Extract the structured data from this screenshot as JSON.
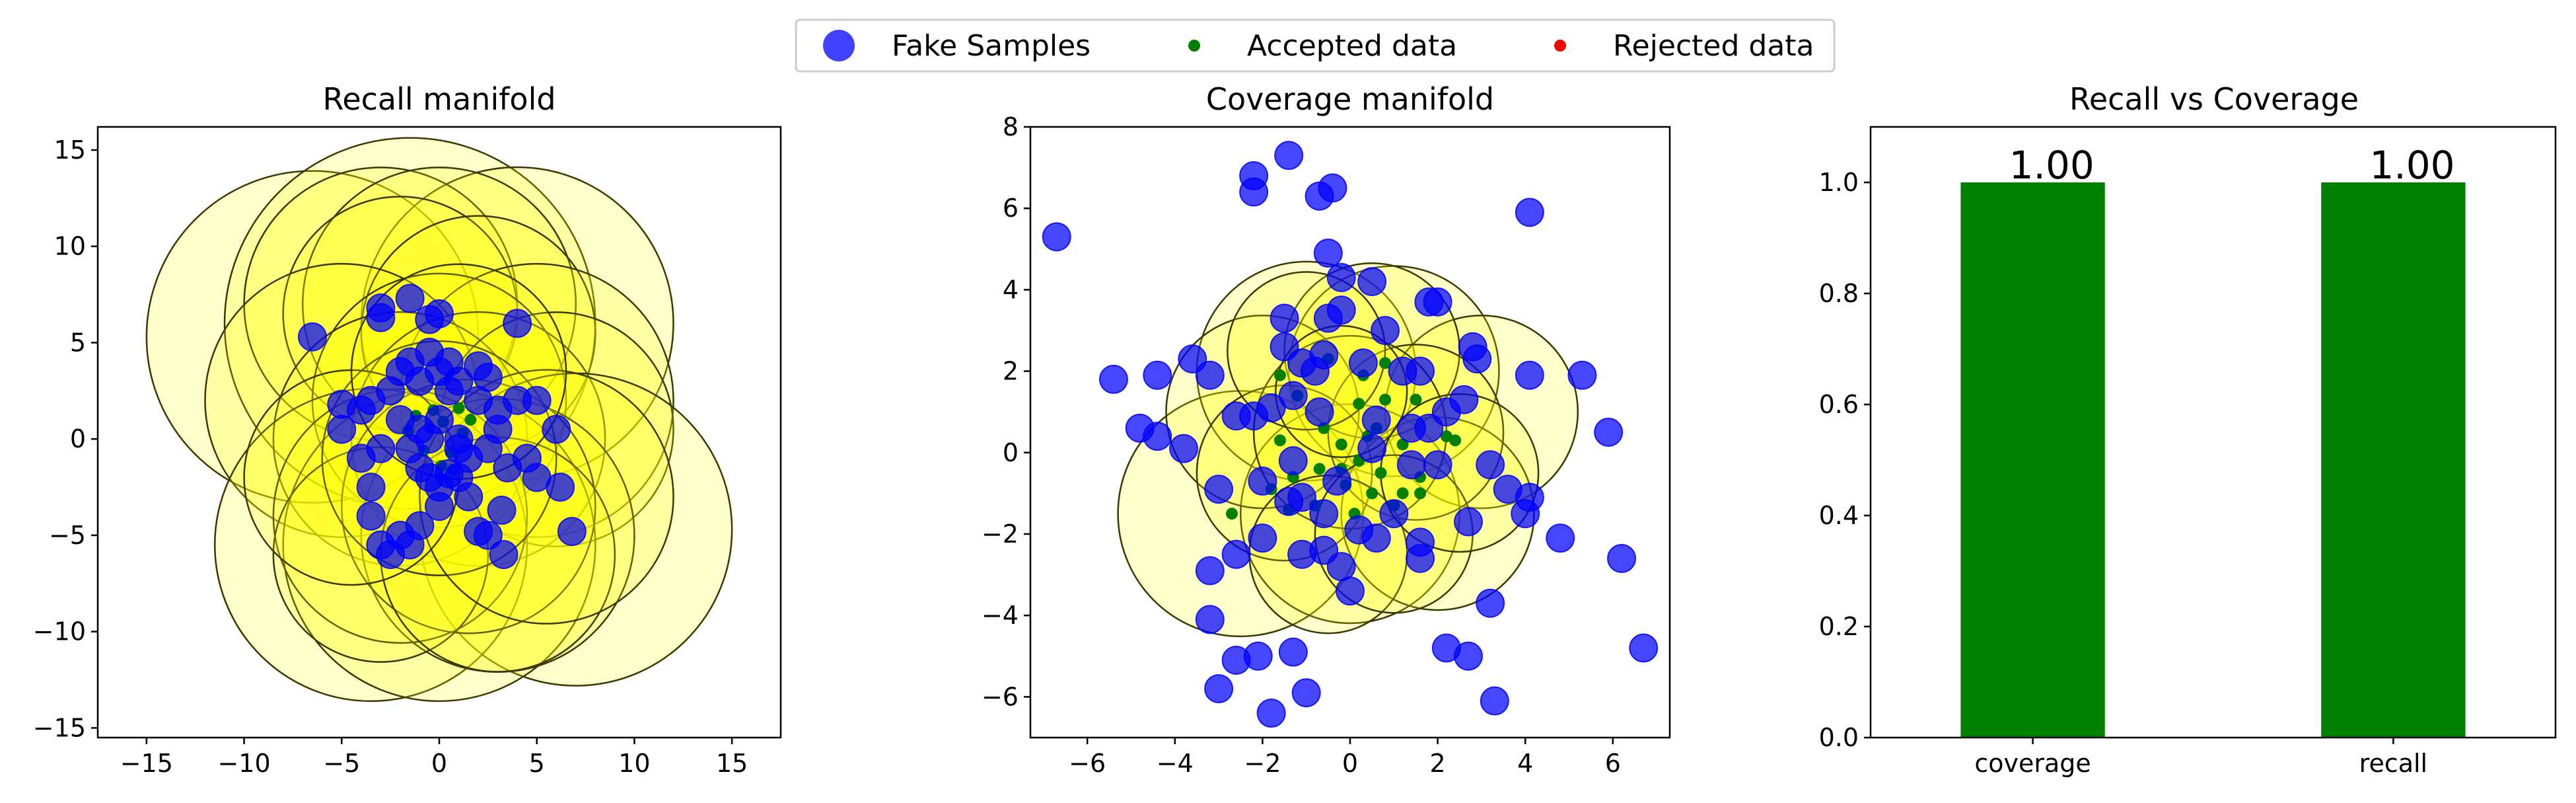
{
  "legend": {
    "items": [
      {
        "label": "Fake Samples",
        "color": "#0000ff",
        "marker": "large-circle"
      },
      {
        "label": "Accepted data",
        "color": "#008000",
        "marker": "small-dot"
      },
      {
        "label": "Rejected data",
        "color": "#ff0000",
        "marker": "small-dot"
      }
    ]
  },
  "colors": {
    "fake": "#0000ff",
    "accepted": "#008000",
    "rejected": "#ff0000",
    "manifold_fill": "#ffff00",
    "manifold_edge": "#3a3a00",
    "bar": "#008000"
  },
  "chart_data": [
    {
      "type": "scatter",
      "title": "Recall manifold",
      "xlim": [
        -17.5,
        17.5
      ],
      "ylim": [
        -15.5,
        16.2
      ],
      "xticks": [
        -15,
        -10,
        -5,
        0,
        5,
        10,
        15
      ],
      "yticks": [
        -15,
        -10,
        -5,
        0,
        5,
        10,
        15
      ],
      "circles": [
        {
          "x": -6.5,
          "y": 5.3,
          "r": 8.5
        },
        {
          "x": -1.5,
          "y": 6.0,
          "r": 9.5
        },
        {
          "x": 4.0,
          "y": 6.0,
          "r": 8.0
        },
        {
          "x": -3.0,
          "y": 7.0,
          "r": 7.0
        },
        {
          "x": 0.0,
          "y": 7.0,
          "r": 7.0
        },
        {
          "x": -2.0,
          "y": 6.5,
          "r": 6.0
        },
        {
          "x": 2.0,
          "y": 5.5,
          "r": 6.0
        },
        {
          "x": 5.0,
          "y": 2.0,
          "r": 7.0
        },
        {
          "x": -5.0,
          "y": 2.0,
          "r": 7.0
        },
        {
          "x": 0.0,
          "y": 2.0,
          "r": 6.5
        },
        {
          "x": -2.0,
          "y": 0.0,
          "r": 6.5
        },
        {
          "x": 2.0,
          "y": 0.0,
          "r": 6.5
        },
        {
          "x": 6.0,
          "y": 0.5,
          "r": 6.0
        },
        {
          "x": 7.0,
          "y": -4.7,
          "r": 8.0
        },
        {
          "x": -3.5,
          "y": -5.5,
          "r": 8.0
        },
        {
          "x": 0.0,
          "y": -5.5,
          "r": 8.0
        },
        {
          "x": 3.0,
          "y": -5.0,
          "r": 7.0
        },
        {
          "x": -2.0,
          "y": -4.0,
          "r": 6.5
        },
        {
          "x": 1.5,
          "y": -3.5,
          "r": 6.5
        },
        {
          "x": -3.0,
          "y": -6.0,
          "r": 5.5
        },
        {
          "x": 3.0,
          "y": -6.0,
          "r": 6.0
        },
        {
          "x": 0.0,
          "y": -1.0,
          "r": 6.0
        },
        {
          "x": 5.5,
          "y": -3.0,
          "r": 6.5
        },
        {
          "x": -4.5,
          "y": -2.0,
          "r": 5.5
        },
        {
          "x": 1.0,
          "y": 3.5,
          "r": 5.5
        }
      ],
      "fake": [
        [
          -6.5,
          5.3
        ],
        [
          -3,
          6.8
        ],
        [
          -3,
          6.3
        ],
        [
          -1.5,
          7.3
        ],
        [
          0,
          6.5
        ],
        [
          -0.5,
          6.2
        ],
        [
          4,
          6
        ],
        [
          -5,
          1.8
        ],
        [
          -4,
          1.5
        ],
        [
          -3.5,
          2
        ],
        [
          -5,
          0.5
        ],
        [
          -2.5,
          2.5
        ],
        [
          -2,
          3.5
        ],
        [
          -1.5,
          4
        ],
        [
          -1,
          3
        ],
        [
          -0.5,
          4.5
        ],
        [
          0,
          3.5
        ],
        [
          0.5,
          2.5
        ],
        [
          0.5,
          4
        ],
        [
          1,
          3
        ],
        [
          2,
          3.8
        ],
        [
          2.5,
          3.2
        ],
        [
          2,
          2
        ],
        [
          3,
          1.5
        ],
        [
          4,
          2
        ],
        [
          5,
          2
        ],
        [
          6,
          0.5
        ],
        [
          -2,
          1
        ],
        [
          -1,
          0.5
        ],
        [
          0,
          1
        ],
        [
          1,
          0
        ],
        [
          1.5,
          -1
        ],
        [
          2.5,
          -0.5
        ],
        [
          3,
          0.5
        ],
        [
          3.5,
          -1.5
        ],
        [
          4.5,
          -1
        ],
        [
          5,
          -2
        ],
        [
          6.2,
          -2.5
        ],
        [
          6.8,
          -4.8
        ],
        [
          -3,
          -0.5
        ],
        [
          -4,
          -1
        ],
        [
          -3.5,
          -2.5
        ],
        [
          -3.5,
          -4
        ],
        [
          -3,
          -5.5
        ],
        [
          -2,
          -5
        ],
        [
          -1.5,
          -5.5
        ],
        [
          -2.5,
          -6
        ],
        [
          -1,
          -4.5
        ],
        [
          0,
          -3.5
        ],
        [
          0,
          -2.5
        ],
        [
          1,
          -2
        ],
        [
          1.5,
          -3
        ],
        [
          2,
          -4.8
        ],
        [
          2.5,
          -5
        ],
        [
          3.2,
          -3.7
        ],
        [
          3.3,
          -6
        ],
        [
          -1,
          -1.5
        ],
        [
          -0.5,
          -2
        ],
        [
          0.5,
          -1.8
        ],
        [
          1,
          -0.5
        ],
        [
          -1.5,
          -0.5
        ],
        [
          -0.5,
          0
        ]
      ],
      "accepted": [
        [
          -0.5,
          0.6
        ],
        [
          0.2,
          0.9
        ],
        [
          1.2,
          0.3
        ],
        [
          -0.8,
          -0.6
        ],
        [
          0.6,
          -0.7
        ],
        [
          1.6,
          1.0
        ],
        [
          -1.6,
          0.4
        ],
        [
          0.1,
          -1.4
        ],
        [
          1.0,
          1.6
        ],
        [
          -0.3,
          1.5
        ],
        [
          0.7,
          -1.6
        ],
        [
          -1.2,
          1.2
        ]
      ],
      "rejected": []
    },
    {
      "type": "scatter",
      "title": "Coverage manifold",
      "xlim": [
        -7.3,
        7.3
      ],
      "ylim": [
        -7.0,
        8.0
      ],
      "xticks": [
        -6,
        -4,
        -2,
        0,
        2,
        4,
        6
      ],
      "yticks": [
        -6,
        -4,
        -2,
        0,
        2,
        4,
        6,
        8
      ],
      "circles": [
        {
          "x": -2.5,
          "y": -1.5,
          "r": 2.8
        },
        {
          "x": -1.0,
          "y": 2.0,
          "r": 2.5
        },
        {
          "x": 1.0,
          "y": 2.0,
          "r": 2.4
        },
        {
          "x": 3.0,
          "y": 1.0,
          "r": 2.2
        },
        {
          "x": 0.0,
          "y": -1.5,
          "r": 2.5
        },
        {
          "x": 2.0,
          "y": -1.5,
          "r": 2.2
        },
        {
          "x": -2.0,
          "y": 1.0,
          "r": 2.2
        },
        {
          "x": 0.5,
          "y": 2.5,
          "r": 2.0
        },
        {
          "x": -1.5,
          "y": -0.5,
          "r": 2.0
        },
        {
          "x": 1.5,
          "y": 0.5,
          "r": 2.0
        },
        {
          "x": 0.0,
          "y": 0.5,
          "r": 2.2
        },
        {
          "x": -0.5,
          "y": -2.5,
          "r": 1.8
        },
        {
          "x": 1.0,
          "y": -2.0,
          "r": 1.8
        },
        {
          "x": -1.0,
          "y": 2.5,
          "r": 1.8
        },
        {
          "x": 2.5,
          "y": -0.5,
          "r": 1.8
        },
        {
          "x": -0.2,
          "y": 1.5,
          "r": 1.5
        }
      ],
      "fake": [
        [
          -6.7,
          5.3
        ],
        [
          -1.4,
          7.3
        ],
        [
          -2.2,
          6.8
        ],
        [
          -2.2,
          6.4
        ],
        [
          -0.7,
          6.3
        ],
        [
          -0.4,
          6.5
        ],
        [
          4.1,
          5.9
        ],
        [
          -0.5,
          4.9
        ],
        [
          -0.2,
          4.3
        ],
        [
          0.5,
          4.2
        ],
        [
          -1.5,
          3.3
        ],
        [
          -0.5,
          3.3
        ],
        [
          -0.2,
          3.5
        ],
        [
          0.8,
          3.0
        ],
        [
          1.8,
          3.7
        ],
        [
          2.0,
          3.7
        ],
        [
          2.8,
          2.6
        ],
        [
          2.9,
          2.3
        ],
        [
          5.3,
          1.9
        ],
        [
          4.1,
          1.9
        ],
        [
          -5.4,
          1.8
        ],
        [
          -4.4,
          1.9
        ],
        [
          -3.6,
          2.3
        ],
        [
          -3.2,
          1.9
        ],
        [
          -2.6,
          0.9
        ],
        [
          -2.2,
          0.9
        ],
        [
          -1.8,
          1.1
        ],
        [
          -1.5,
          2.6
        ],
        [
          -1.1,
          2.2
        ],
        [
          -0.8,
          2.0
        ],
        [
          -0.6,
          2.4
        ],
        [
          0.3,
          2.2
        ],
        [
          1.2,
          2.0
        ],
        [
          1.6,
          2.0
        ],
        [
          2.2,
          1.0
        ],
        [
          2.6,
          1.3
        ],
        [
          1.8,
          0.6
        ],
        [
          1.4,
          0.6
        ],
        [
          0.6,
          0.8
        ],
        [
          -0.7,
          1.0
        ],
        [
          -1.3,
          1.4
        ],
        [
          -4.8,
          0.6
        ],
        [
          -4.4,
          0.4
        ],
        [
          -3.8,
          0.1
        ],
        [
          -3.0,
          -0.9
        ],
        [
          -2.0,
          -0.7
        ],
        [
          -1.3,
          -0.2
        ],
        [
          -1.1,
          -1.1
        ],
        [
          -0.3,
          -0.7
        ],
        [
          0.5,
          0.1
        ],
        [
          1.4,
          -0.3
        ],
        [
          2.0,
          -0.3
        ],
        [
          3.2,
          -0.3
        ],
        [
          3.6,
          -0.9
        ],
        [
          4.1,
          -1.1
        ],
        [
          4.0,
          -1.5
        ],
        [
          5.9,
          0.5
        ],
        [
          -1.4,
          -1.2
        ],
        [
          -0.6,
          -1.5
        ],
        [
          0.2,
          -1.9
        ],
        [
          1.0,
          -1.5
        ],
        [
          1.6,
          -2.2
        ],
        [
          2.7,
          -1.7
        ],
        [
          4.8,
          -2.1
        ],
        [
          6.2,
          -2.6
        ],
        [
          -3.2,
          -2.9
        ],
        [
          -2.6,
          -2.5
        ],
        [
          -2.0,
          -2.1
        ],
        [
          -1.1,
          -2.5
        ],
        [
          -0.6,
          -2.4
        ],
        [
          -0.2,
          -2.8
        ],
        [
          0.6,
          -2.1
        ],
        [
          1.6,
          -2.6
        ],
        [
          0.0,
          -3.4
        ],
        [
          -3.2,
          -4.1
        ],
        [
          3.2,
          -3.7
        ],
        [
          -2.6,
          -5.1
        ],
        [
          -2.1,
          -5.0
        ],
        [
          -1.3,
          -4.9
        ],
        [
          -3.0,
          -5.8
        ],
        [
          -1.0,
          -5.9
        ],
        [
          2.2,
          -4.8
        ],
        [
          2.7,
          -5.0
        ],
        [
          3.3,
          -6.1
        ],
        [
          -1.8,
          -6.4
        ],
        [
          6.7,
          -4.8
        ]
      ],
      "accepted": [
        [
          -0.5,
          2.3
        ],
        [
          0.8,
          2.2
        ],
        [
          -1.2,
          1.4
        ],
        [
          0.2,
          1.2
        ],
        [
          0.8,
          1.3
        ],
        [
          1.5,
          1.3
        ],
        [
          -0.6,
          0.6
        ],
        [
          0.6,
          0.6
        ],
        [
          1.2,
          0.2
        ],
        [
          -1.6,
          0.3
        ],
        [
          -0.2,
          0.2
        ],
        [
          0.2,
          -0.2
        ],
        [
          0.7,
          -0.5
        ],
        [
          1.6,
          -0.6
        ],
        [
          2.2,
          0.4
        ],
        [
          -1.3,
          -0.6
        ],
        [
          -0.7,
          -0.4
        ],
        [
          -0.1,
          -0.8
        ],
        [
          0.5,
          -1.0
        ],
        [
          1.2,
          -1.0
        ],
        [
          -0.8,
          -1.3
        ],
        [
          0.1,
          -1.5
        ],
        [
          1.0,
          -1.3
        ],
        [
          1.6,
          -1.0
        ],
        [
          -1.8,
          -0.9
        ],
        [
          -1.6,
          1.9
        ],
        [
          0.3,
          1.9
        ],
        [
          -0.2,
          -0.4
        ],
        [
          0.4,
          0.4
        ],
        [
          -2.7,
          -1.5
        ],
        [
          -1.4,
          -1.4
        ],
        [
          2.4,
          0.3
        ]
      ],
      "rejected": []
    },
    {
      "type": "bar",
      "title": "Recall vs Coverage",
      "categories": [
        "coverage",
        "recall"
      ],
      "values": [
        1.0,
        1.0
      ],
      "value_labels": [
        "1.00",
        "1.00"
      ],
      "ylim": [
        0,
        1.1
      ],
      "yticks": [
        "0.0",
        "0.2",
        "0.4",
        "0.6",
        "0.8",
        "1.0"
      ]
    }
  ]
}
